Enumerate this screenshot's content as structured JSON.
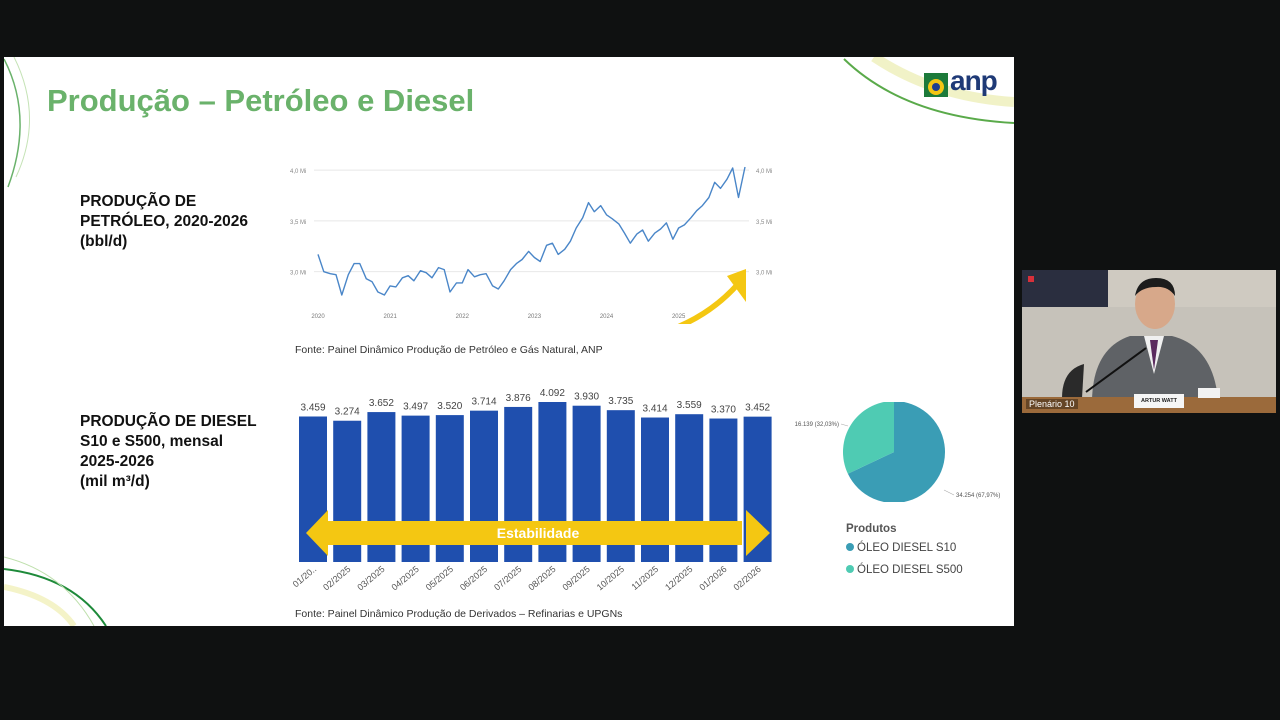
{
  "slide": {
    "title": "Produção – Petróleo e Diesel",
    "logo_text": "anp"
  },
  "oil_section": {
    "label_lines": [
      "PRODUÇÃO DE",
      "PETRÓLEO, 2020-2026",
      "(bbl/d)"
    ],
    "source": "Fonte: Painel Dinâmico Produção de Petróleo e Gás Natural, ANP"
  },
  "diesel_section": {
    "label_lines": [
      "PRODUÇÃO DE DIESEL",
      "S10 e S500, mensal",
      "2025-2026",
      "(mil m³/d)"
    ],
    "source": "Fonte: Painel Dinâmico Produção de Derivados – Refinarias e UPGNs",
    "banner_text": "Estabilidade"
  },
  "pie": {
    "legend_title": "Produtos",
    "items": [
      {
        "label": "ÓLEO DIESEL S10",
        "color": "#3a9db5"
      },
      {
        "label": "ÓLEO DIESEL S500",
        "color": "#4fcbb3"
      }
    ]
  },
  "camera": {
    "label": "Plenário 10",
    "nameplate": "ARTUR WATT"
  },
  "chart_data": [
    {
      "type": "line",
      "x_ticks": [
        "2020",
        "2021",
        "2022",
        "2023",
        "2024",
        "2025"
      ],
      "y_ticks_left": [
        "3,0 Mi",
        "3,5 Mi",
        "4,0 Mi"
      ],
      "y_ticks_right": [
        "3,0 Mi",
        "3,5 Mi",
        "4,0 Mi"
      ],
      "ylim": [
        2.8,
        4.05
      ],
      "x": [
        2020.0,
        2020.08,
        2020.17,
        2020.25,
        2020.33,
        2020.42,
        2020.5,
        2020.58,
        2020.67,
        2020.75,
        2020.83,
        2020.92,
        2021.0,
        2021.08,
        2021.17,
        2021.25,
        2021.33,
        2021.42,
        2021.5,
        2021.58,
        2021.67,
        2021.75,
        2021.83,
        2021.92,
        2022.0,
        2022.08,
        2022.17,
        2022.25,
        2022.33,
        2022.42,
        2022.5,
        2022.58,
        2022.67,
        2022.75,
        2022.83,
        2022.92,
        2023.0,
        2023.08,
        2023.17,
        2023.25,
        2023.33,
        2023.42,
        2023.5,
        2023.58,
        2023.67,
        2023.75,
        2023.83,
        2023.92,
        2024.0,
        2024.08,
        2024.17,
        2024.25,
        2024.33,
        2024.42,
        2024.5,
        2024.58,
        2024.67,
        2024.75,
        2024.83,
        2024.92,
        2025.0,
        2025.08,
        2025.17,
        2025.25,
        2025.33,
        2025.42,
        2025.5,
        2025.58,
        2025.67,
        2025.75,
        2025.83,
        2025.92
      ],
      "values": [
        3.17,
        3.0,
        2.98,
        2.97,
        2.77,
        2.97,
        3.08,
        3.08,
        2.93,
        2.9,
        2.8,
        2.77,
        2.86,
        2.85,
        2.94,
        2.96,
        2.91,
        3.01,
        2.99,
        2.94,
        3.04,
        3.02,
        2.8,
        2.89,
        2.89,
        3.02,
        2.95,
        2.97,
        2.98,
        2.86,
        2.83,
        2.91,
        3.02,
        3.08,
        3.12,
        3.2,
        3.14,
        3.1,
        3.26,
        3.28,
        3.17,
        3.22,
        3.3,
        3.43,
        3.53,
        3.68,
        3.59,
        3.65,
        3.56,
        3.52,
        3.47,
        3.38,
        3.28,
        3.37,
        3.41,
        3.3,
        3.38,
        3.42,
        3.48,
        3.32,
        3.43,
        3.46,
        3.53,
        3.6,
        3.65,
        3.73,
        3.88,
        3.82,
        3.91,
        4.02,
        3.73,
        4.03
      ]
    },
    {
      "type": "bar",
      "categories": [
        "01/20..",
        "02/2025",
        "03/2025",
        "04/2025",
        "05/2025",
        "06/2025",
        "07/2025",
        "08/2025",
        "09/2025",
        "10/2025",
        "11/2025",
        "12/2025",
        "01/2026",
        "02/2026"
      ],
      "values": [
        3.459,
        3.274,
        3.652,
        3.497,
        3.52,
        3.714,
        3.876,
        4.092,
        3.93,
        3.735,
        3.414,
        3.559,
        3.37,
        3.452
      ],
      "data_labels": [
        "3.459",
        "3.274",
        "3.652",
        "3.497",
        "3.520",
        "3.714",
        "3.876",
        "4.092",
        "3.930",
        "3.735",
        "3.414",
        "3.559",
        "3.370",
        "3.452"
      ],
      "color": "#1f4fae"
    },
    {
      "type": "pie",
      "slices": [
        {
          "name": "ÓLEO DIESEL S10",
          "value": 34.254,
          "label": "34.254 (67,97%)",
          "color": "#3a9db5"
        },
        {
          "name": "ÓLEO DIESEL S500",
          "value": 16.139,
          "label": "16.139 (32,03%)",
          "color": "#4fcbb3"
        }
      ]
    }
  ]
}
